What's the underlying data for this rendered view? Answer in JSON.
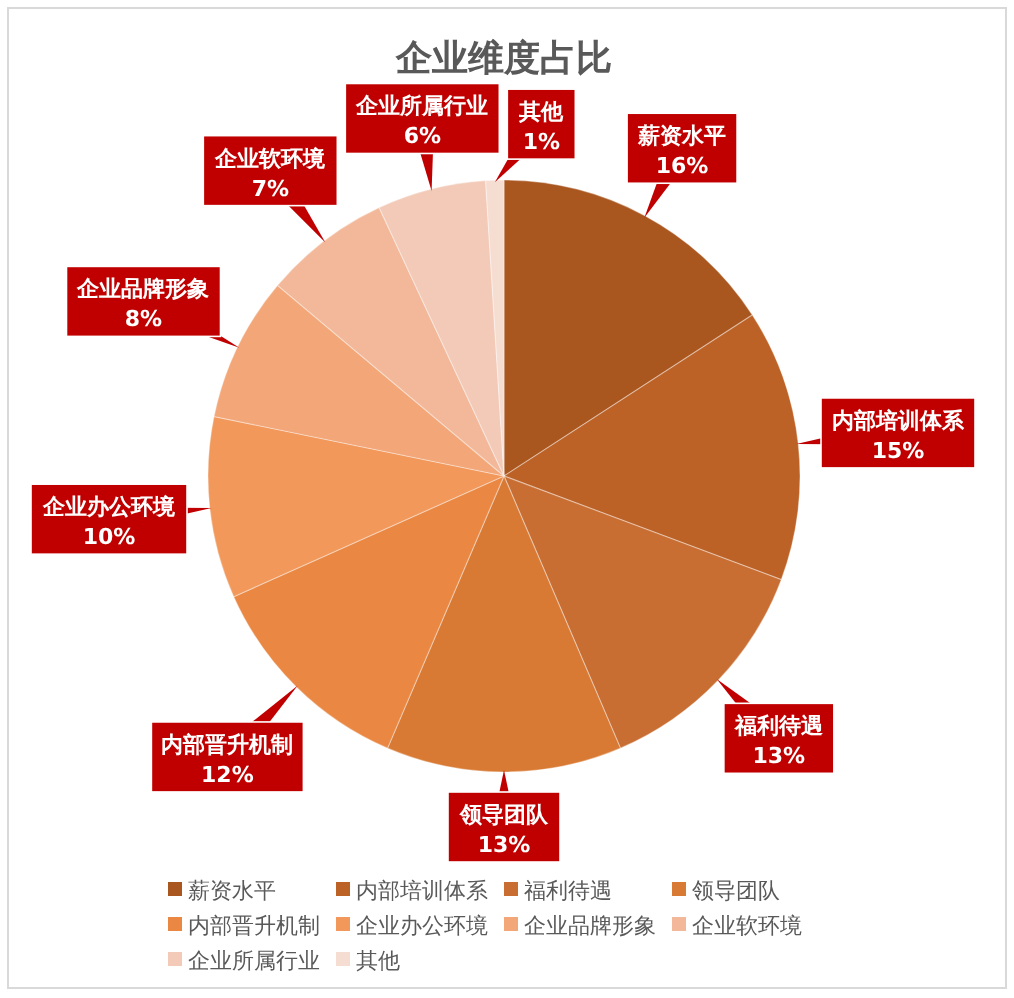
{
  "chart_data": {
    "type": "pie",
    "title": "企业维度占比",
    "categories": [
      "薪资水平",
      "内部培训体系",
      "福利待遇",
      "领导团队",
      "内部晋升机制",
      "企业办公环境",
      "企业品牌形象",
      "企业软环境",
      "企业所属行业",
      "其他"
    ],
    "values": [
      16,
      15,
      13,
      13,
      12,
      10,
      8,
      7,
      6,
      1
    ],
    "value_labels": [
      "16%",
      "15%",
      "13%",
      "13%",
      "12%",
      "10%",
      "8%",
      "7%",
      "6%",
      "1%"
    ],
    "colors": [
      "#a9561f",
      "#bd6226",
      "#c96e33",
      "#d87a34",
      "#ea8843",
      "#f1985a",
      "#f3a779",
      "#f2b899",
      "#f3cab7",
      "#f6ddd2"
    ],
    "legend": "bottom"
  }
}
